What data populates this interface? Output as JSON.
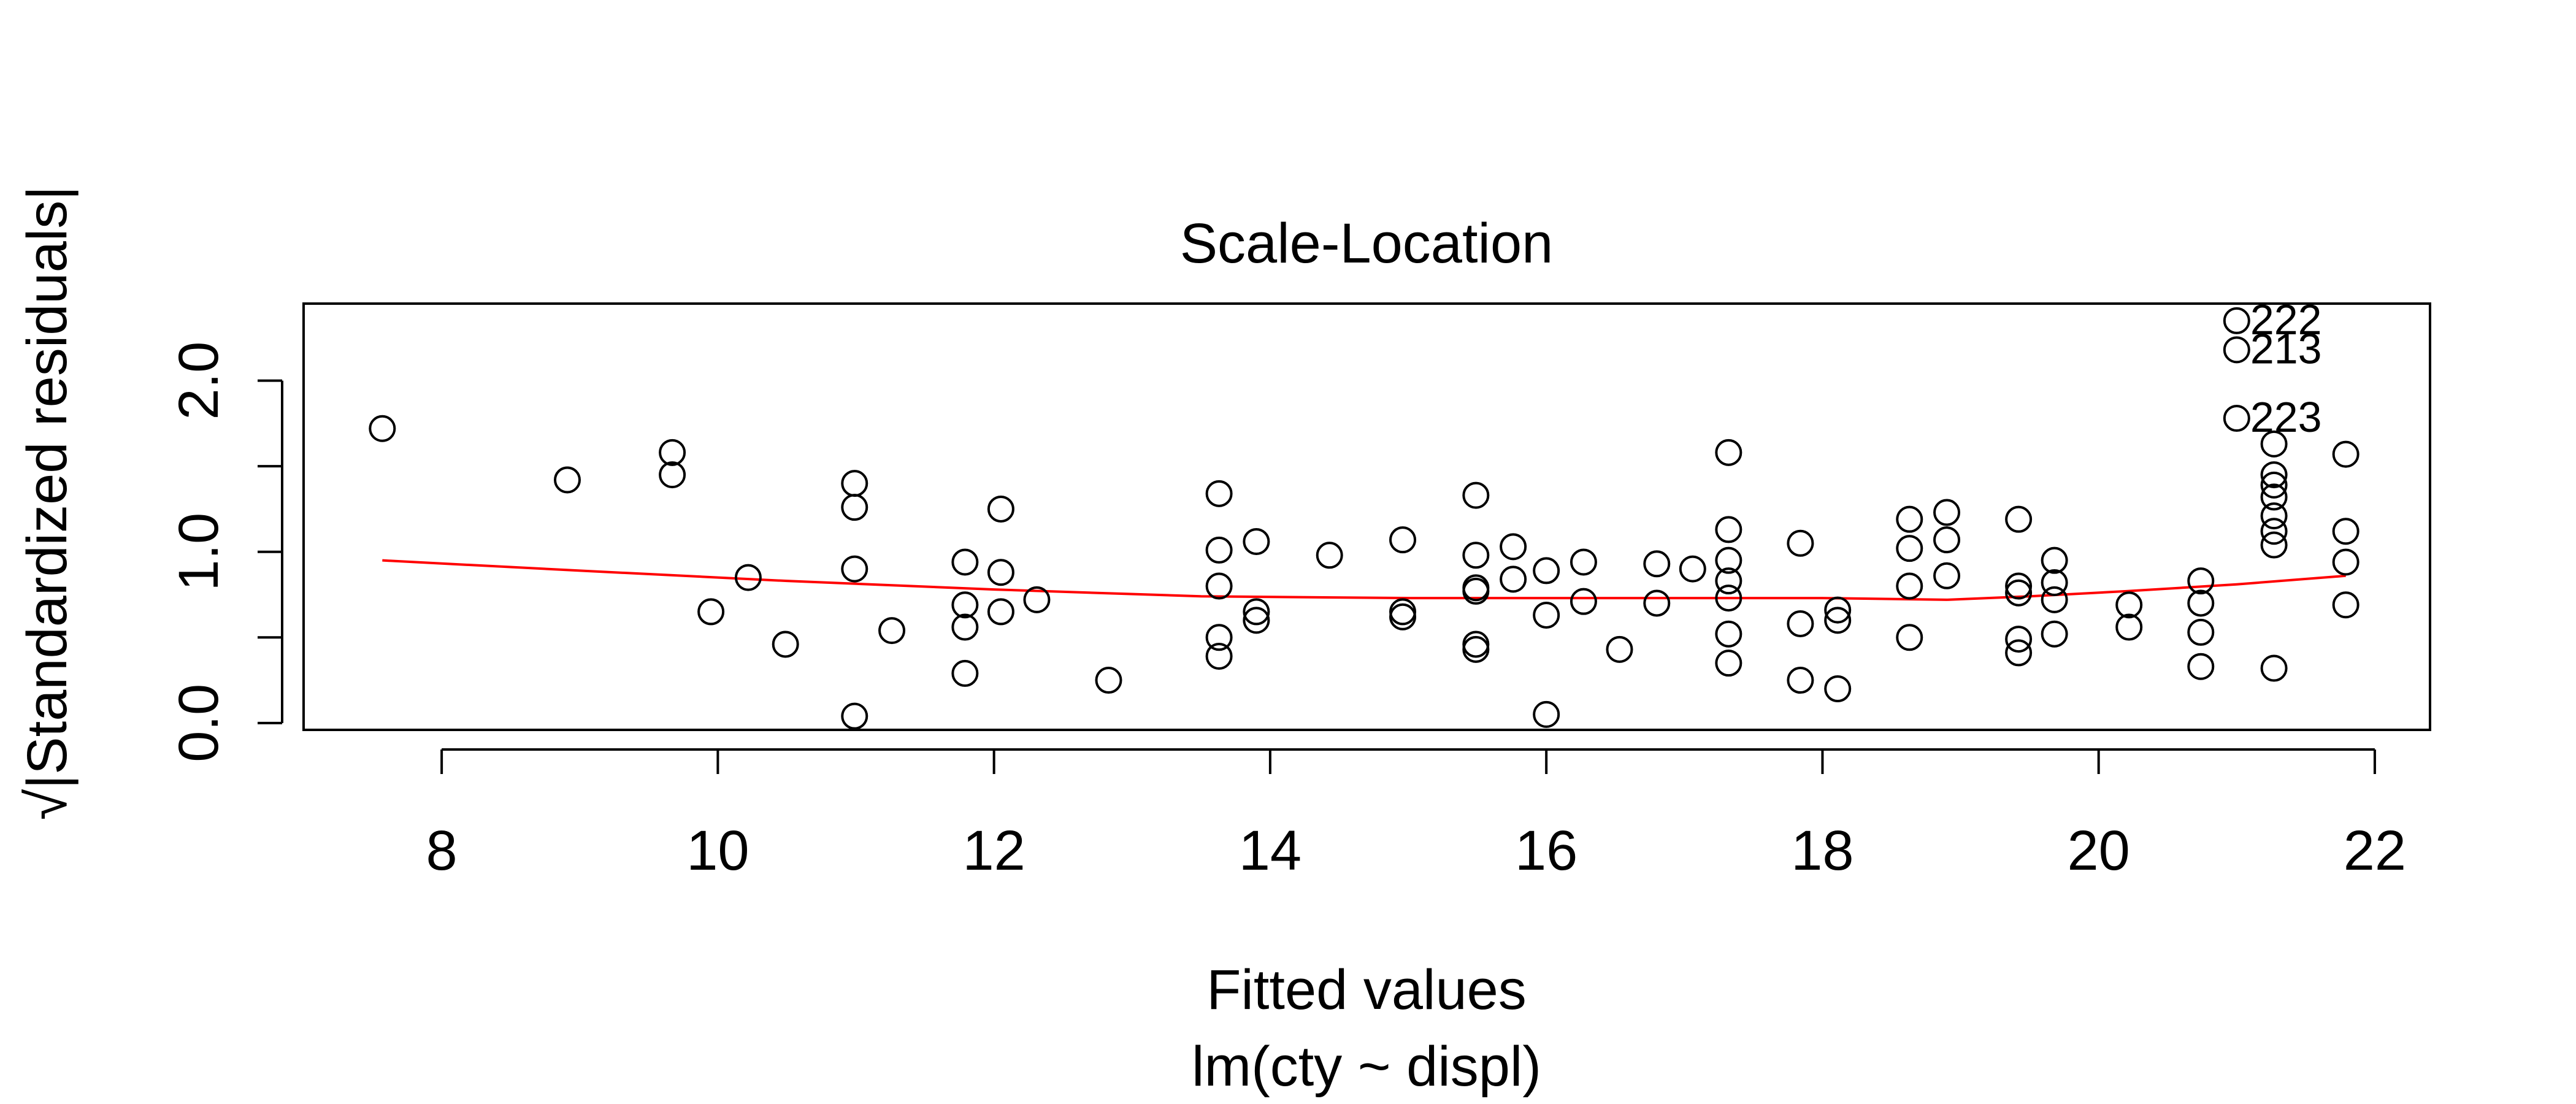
{
  "chart_data": {
    "type": "scatter",
    "title": "Scale-Location",
    "xlabel": "Fitted values",
    "sublabel": "lm(cty ~ displ)",
    "ylabel": "√|Standardized residuals|",
    "xlim": [
      7.0,
      22.4
    ],
    "ylim": [
      -0.04,
      2.45
    ],
    "x_ticks": [
      8,
      10,
      12,
      14,
      16,
      18,
      20,
      22
    ],
    "x_tick_labels": [
      "8",
      "10",
      "12",
      "14",
      "16",
      "18",
      "20",
      "22"
    ],
    "y_ticks": [
      0.0,
      0.5,
      1.0,
      1.5,
      2.0
    ],
    "y_tick_labels": [
      "0.0",
      "",
      "1.0",
      "",
      "2.0"
    ],
    "grid": false,
    "points": [
      [
        7.57,
        1.72
      ],
      [
        8.91,
        1.42
      ],
      [
        9.67,
        1.58
      ],
      [
        9.67,
        1.45
      ],
      [
        9.95,
        0.65
      ],
      [
        10.22,
        0.85
      ],
      [
        10.49,
        0.46
      ],
      [
        10.99,
        1.4
      ],
      [
        10.99,
        1.26
      ],
      [
        10.99,
        0.9
      ],
      [
        10.99,
        0.04
      ],
      [
        11.26,
        0.54
      ],
      [
        11.79,
        0.94
      ],
      [
        11.79,
        0.69
      ],
      [
        11.79,
        0.56
      ],
      [
        11.79,
        0.29
      ],
      [
        12.05,
        1.25
      ],
      [
        12.05,
        0.88
      ],
      [
        12.05,
        0.65
      ],
      [
        12.31,
        0.72
      ],
      [
        12.83,
        0.25
      ],
      [
        13.63,
        1.34
      ],
      [
        13.63,
        1.01
      ],
      [
        13.63,
        0.8
      ],
      [
        13.63,
        0.5
      ],
      [
        13.63,
        0.39
      ],
      [
        13.9,
        1.06
      ],
      [
        13.9,
        0.65
      ],
      [
        13.9,
        0.6
      ],
      [
        14.43,
        0.98
      ],
      [
        14.96,
        1.07
      ],
      [
        14.96,
        0.65
      ],
      [
        14.96,
        0.62
      ],
      [
        15.49,
        1.33
      ],
      [
        15.49,
        0.98
      ],
      [
        15.49,
        0.79
      ],
      [
        15.49,
        0.77
      ],
      [
        15.49,
        0.46
      ],
      [
        15.49,
        0.43
      ],
      [
        15.76,
        1.03
      ],
      [
        15.76,
        0.84
      ],
      [
        16.0,
        0.89
      ],
      [
        16.0,
        0.63
      ],
      [
        16.0,
        0.05
      ],
      [
        16.27,
        0.94
      ],
      [
        16.27,
        0.71
      ],
      [
        16.53,
        0.43
      ],
      [
        16.8,
        0.93
      ],
      [
        16.8,
        0.7
      ],
      [
        17.06,
        0.9
      ],
      [
        17.32,
        1.58
      ],
      [
        17.32,
        1.13
      ],
      [
        17.32,
        0.95
      ],
      [
        17.32,
        0.83
      ],
      [
        17.32,
        0.73
      ],
      [
        17.32,
        0.52
      ],
      [
        17.32,
        0.35
      ],
      [
        17.84,
        1.05
      ],
      [
        17.84,
        0.58
      ],
      [
        17.84,
        0.25
      ],
      [
        18.11,
        0.66
      ],
      [
        18.11,
        0.6
      ],
      [
        18.11,
        0.2
      ],
      [
        18.63,
        1.19
      ],
      [
        18.63,
        1.02
      ],
      [
        18.63,
        0.8
      ],
      [
        18.63,
        0.5
      ],
      [
        18.9,
        1.23
      ],
      [
        18.9,
        1.07
      ],
      [
        18.9,
        0.86
      ],
      [
        19.42,
        1.19
      ],
      [
        19.42,
        0.8
      ],
      [
        19.42,
        0.76
      ],
      [
        19.42,
        0.49
      ],
      [
        19.42,
        0.41
      ],
      [
        19.68,
        0.95
      ],
      [
        19.68,
        0.82
      ],
      [
        19.68,
        0.72
      ],
      [
        19.68,
        0.52
      ],
      [
        20.22,
        0.69
      ],
      [
        20.22,
        0.56
      ],
      [
        20.74,
        0.83
      ],
      [
        20.74,
        0.7
      ],
      [
        20.74,
        0.53
      ],
      [
        20.74,
        0.33
      ],
      [
        21.0,
        2.35
      ],
      [
        21.0,
        2.18
      ],
      [
        21.0,
        1.78
      ],
      [
        21.27,
        1.63
      ],
      [
        21.27,
        1.45
      ],
      [
        21.27,
        1.39
      ],
      [
        21.27,
        1.32
      ],
      [
        21.27,
        1.21
      ],
      [
        21.27,
        1.12
      ],
      [
        21.27,
        1.04
      ],
      [
        21.27,
        0.32
      ],
      [
        21.79,
        1.57
      ],
      [
        21.79,
        1.12
      ],
      [
        21.79,
        0.94
      ],
      [
        21.79,
        0.69
      ]
    ],
    "annotations": [
      {
        "x": 21.0,
        "y": 2.35,
        "text": "222"
      },
      {
        "x": 21.0,
        "y": 2.18,
        "text": "213"
      },
      {
        "x": 21.0,
        "y": 1.78,
        "text": "223"
      }
    ],
    "smooth_line": {
      "color": "#ff0000",
      "x": [
        7.57,
        9.0,
        10.5,
        12.0,
        13.5,
        15.0,
        16.5,
        18.0,
        18.9,
        19.5,
        20.2,
        21.0,
        21.79
      ],
      "y": [
        0.95,
        0.89,
        0.83,
        0.78,
        0.74,
        0.73,
        0.73,
        0.73,
        0.72,
        0.74,
        0.77,
        0.81,
        0.86
      ]
    },
    "colors": {
      "points": "#000000",
      "smooth": "#ff0000",
      "axes": "#000000"
    }
  }
}
